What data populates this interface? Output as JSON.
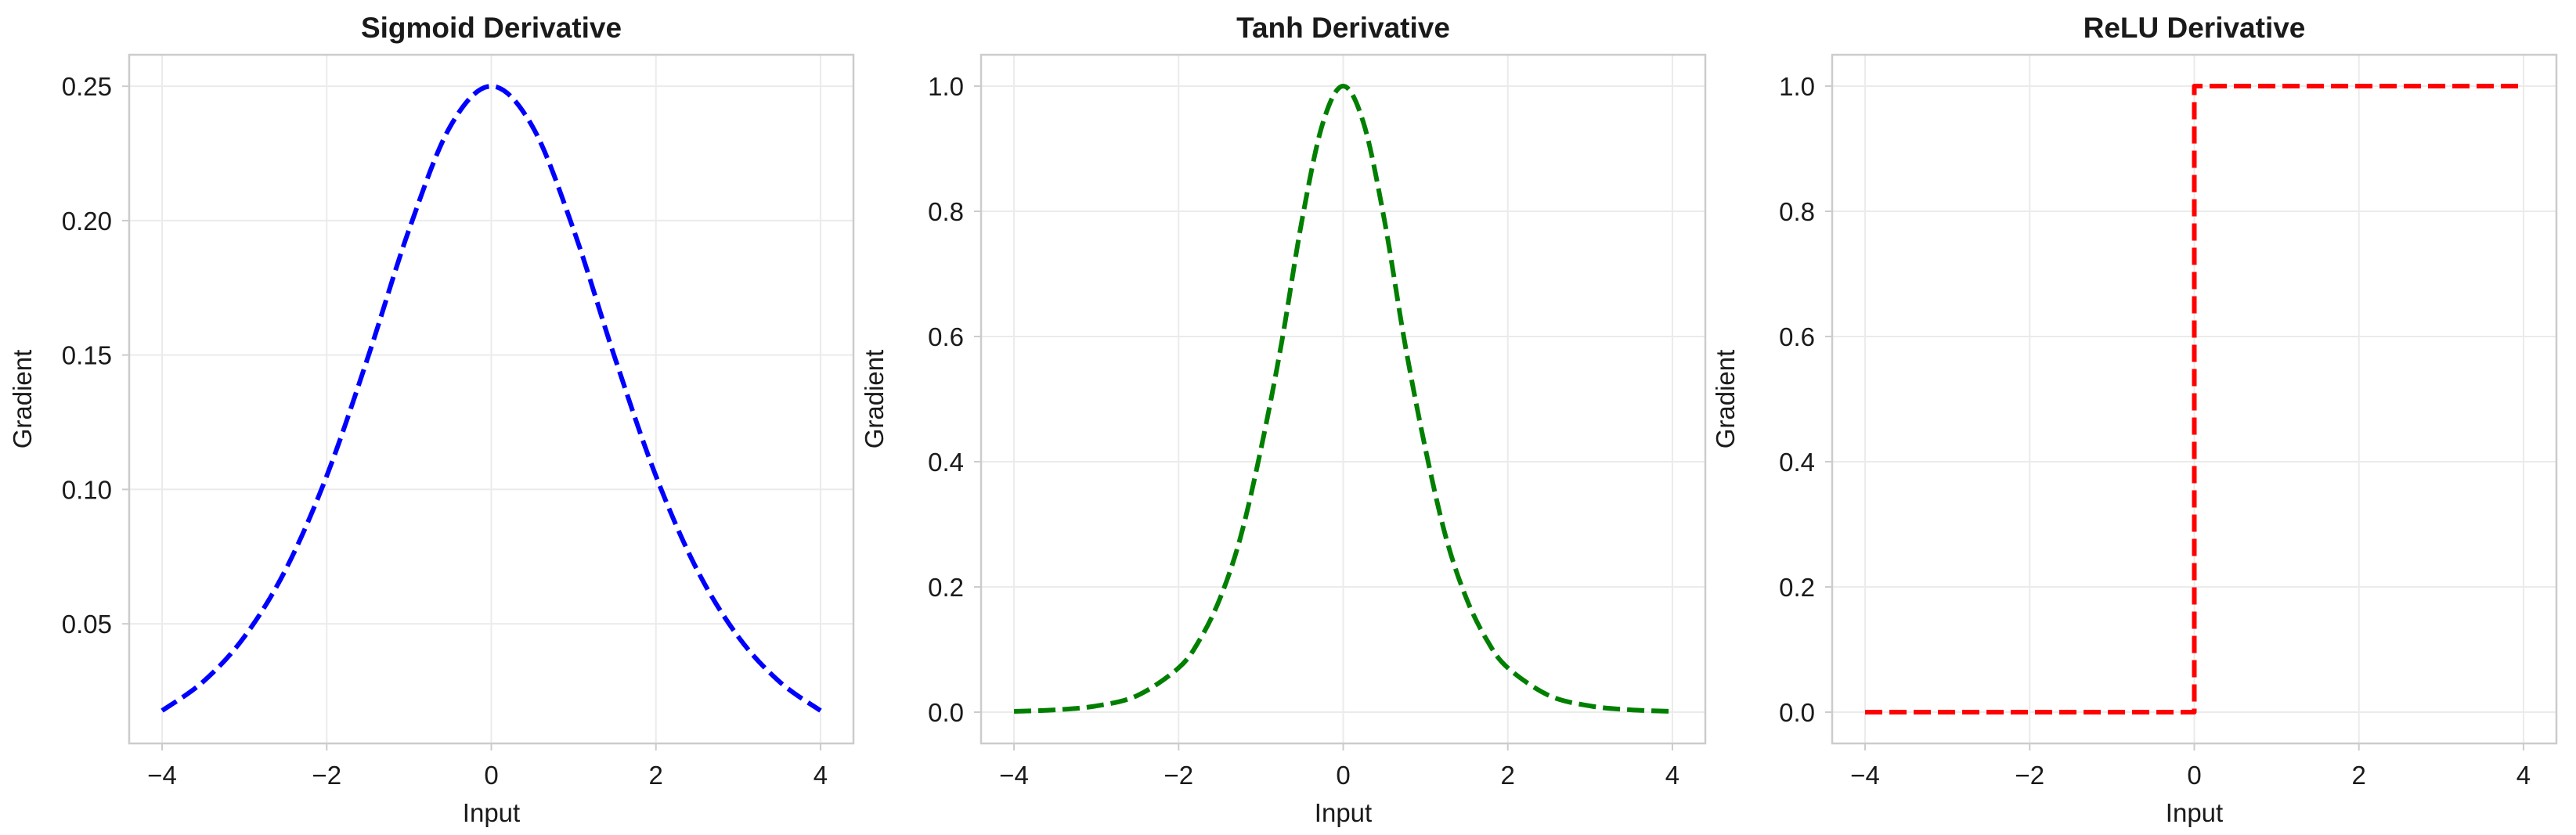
{
  "chart_data": [
    {
      "type": "line",
      "title": "Sigmoid Derivative",
      "xlabel": "Input",
      "ylabel": "Gradient",
      "xlim": [
        -4.4,
        4.4
      ],
      "ylim": [
        0.0055,
        0.2617
      ],
      "xticks": [
        -4,
        -2,
        0,
        2,
        4
      ],
      "xtick_labels": [
        "−4",
        "−2",
        "0",
        "2",
        "4"
      ],
      "yticks": [
        0.05,
        0.1,
        0.15,
        0.2,
        0.25
      ],
      "ytick_labels": [
        "0.05",
        "0.10",
        "0.15",
        "0.20",
        "0.25"
      ],
      "grid": true,
      "legend": "none",
      "series": [
        {
          "color": "#0000ff",
          "style": "dashed",
          "x": [
            -4,
            -3.5,
            -3,
            -2.5,
            -2,
            -1.5,
            -1,
            -0.5,
            0,
            0.5,
            1,
            1.5,
            2,
            2.5,
            3,
            3.5,
            4
          ],
          "y": [
            0.0177,
            0.0285,
            0.0452,
            0.0701,
            0.105,
            0.1491,
            0.1966,
            0.235,
            0.25,
            0.235,
            0.1966,
            0.1491,
            0.105,
            0.0701,
            0.0452,
            0.0285,
            0.0177
          ]
        }
      ]
    },
    {
      "type": "line",
      "title": "Tanh Derivative",
      "xlabel": "Input",
      "ylabel": "Gradient",
      "xlim": [
        -4.4,
        4.4
      ],
      "ylim": [
        -0.05,
        1.05
      ],
      "xticks": [
        -4,
        -2,
        0,
        2,
        4
      ],
      "xtick_labels": [
        "−4",
        "−2",
        "0",
        "2",
        "4"
      ],
      "yticks": [
        0.0,
        0.2,
        0.4,
        0.6,
        0.8,
        1.0
      ],
      "ytick_labels": [
        "0.0",
        "0.2",
        "0.4",
        "0.6",
        "0.8",
        "1.0"
      ],
      "grid": true,
      "legend": "none",
      "series": [
        {
          "color": "#007f00",
          "style": "dashed",
          "x": [
            -4,
            -3.5,
            -3,
            -2.5,
            -2,
            -1.75,
            -1.5,
            -1.25,
            -1,
            -0.75,
            -0.5,
            -0.25,
            0,
            0.25,
            0.5,
            0.75,
            1,
            1.25,
            1.5,
            1.75,
            2,
            2.5,
            3,
            3.5,
            4
          ],
          "y": [
            0.0013,
            0.0036,
            0.0099,
            0.0266,
            0.0707,
            0.1142,
            0.1807,
            0.2784,
            0.42,
            0.5889,
            0.7864,
            0.9398,
            1.0,
            0.9398,
            0.7864,
            0.5889,
            0.42,
            0.2784,
            0.1807,
            0.1142,
            0.0707,
            0.0266,
            0.0099,
            0.0036,
            0.0013
          ]
        }
      ]
    },
    {
      "type": "line",
      "title": "ReLU Derivative",
      "xlabel": "Input",
      "ylabel": "Gradient",
      "xlim": [
        -4.4,
        4.4
      ],
      "ylim": [
        -0.05,
        1.05
      ],
      "xticks": [
        -4,
        -2,
        0,
        2,
        4
      ],
      "xtick_labels": [
        "−4",
        "−2",
        "0",
        "2",
        "4"
      ],
      "yticks": [
        0.0,
        0.2,
        0.4,
        0.6,
        0.8,
        1.0
      ],
      "ytick_labels": [
        "0.0",
        "0.2",
        "0.4",
        "0.6",
        "0.8",
        "1.0"
      ],
      "grid": true,
      "legend": "none",
      "series": [
        {
          "color": "#ff0000",
          "style": "dashed",
          "x": [
            -4,
            0,
            0,
            4
          ],
          "y": [
            0,
            0,
            1,
            1
          ]
        }
      ]
    }
  ]
}
